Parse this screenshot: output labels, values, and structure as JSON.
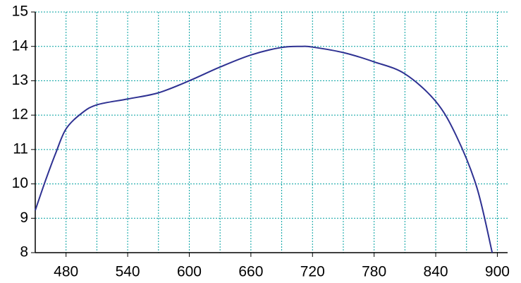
{
  "chart_data": {
    "type": "line",
    "x": [
      450,
      460,
      470,
      480,
      495,
      510,
      540,
      570,
      600,
      630,
      660,
      690,
      710,
      720,
      750,
      780,
      810,
      840,
      860,
      880,
      895
    ],
    "series": [
      {
        "color": "#2e3192",
        "values": [
          9.23,
          10.1,
          10.9,
          11.6,
          12.05,
          12.3,
          12.47,
          12.65,
          13.0,
          13.4,
          13.75,
          13.97,
          14.0,
          13.98,
          13.82,
          13.55,
          13.2,
          12.4,
          11.4,
          9.9,
          8.0
        ]
      }
    ],
    "xlim": [
      450,
      910
    ],
    "ylim": [
      8,
      15
    ],
    "xticks": [
      480,
      540,
      600,
      660,
      720,
      780,
      840,
      900
    ],
    "x_gridlines": [
      480,
      510,
      540,
      570,
      600,
      630,
      660,
      690,
      720,
      750,
      780,
      810,
      840,
      870,
      900
    ],
    "yticks": [
      8,
      9,
      10,
      11,
      12,
      13,
      14,
      15
    ],
    "grid": true,
    "grid_color": "#00a0a0"
  }
}
